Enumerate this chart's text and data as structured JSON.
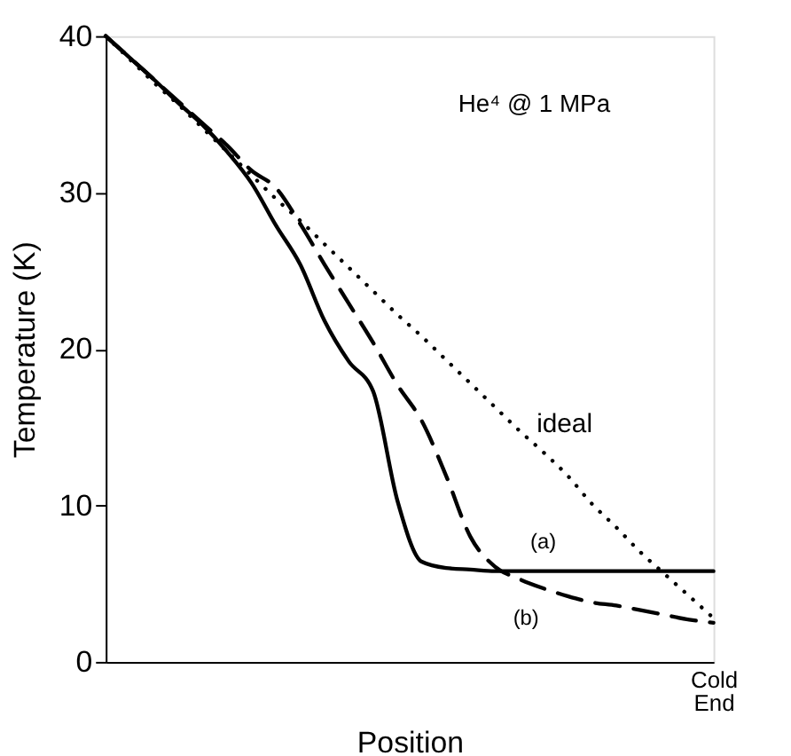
{
  "chart_data": {
    "type": "line",
    "annotations": [
      "He⁴ @ 1 MPa"
    ],
    "xlabel": "Position",
    "ylabel": "Temperature  (K)",
    "categories": [
      null,
      null,
      null,
      null,
      null,
      null,
      null,
      null,
      null,
      null,
      null,
      null,
      null,
      null,
      null,
      null,
      null,
      null,
      null,
      null,
      null,
      null,
      null,
      null,
      null,
      "Cold End"
    ],
    "ylim": [
      0,
      40
    ],
    "yticks": [
      0,
      10,
      20,
      30,
      40
    ],
    "grid": false,
    "marker": "none",
    "series": [
      {
        "name": "ideal",
        "color": "#000000",
        "line_style": "dotted",
        "values": [
          40,
          38.5,
          37.0,
          35.6,
          34.1,
          32.6,
          31.1,
          29.6,
          28.2,
          26.7,
          25.2,
          23.7,
          22.2,
          20.8,
          19.3,
          17.8,
          16.3,
          14.8,
          13.4,
          11.9,
          10.1,
          8.6,
          7.0,
          5.6,
          4.2,
          2.8
        ]
      },
      {
        "name": "(a)",
        "color": "#000000",
        "line_style": "solid",
        "values": [
          40,
          38.6,
          37.2,
          35.7,
          34.3,
          32.6,
          30.6,
          27.9,
          25.4,
          21.8,
          19.2,
          17.3,
          10.3,
          6.4,
          6.0,
          5.9,
          5.8,
          5.8,
          5.8,
          5.8,
          5.8,
          5.8,
          5.8,
          5.8,
          5.8,
          5.8
        ]
      },
      {
        "name": "(b)",
        "color": "#000000",
        "line_style": "dashed",
        "values": [
          40,
          38.6,
          37.2,
          35.8,
          34.4,
          33.0,
          31.4,
          30.3,
          28.0,
          25.4,
          22.9,
          20.4,
          17.7,
          15.4,
          11.9,
          8.0,
          6.1,
          5.3,
          4.7,
          4.2,
          3.8,
          3.6,
          3.3,
          3.0,
          2.7,
          2.5
        ]
      }
    ]
  }
}
